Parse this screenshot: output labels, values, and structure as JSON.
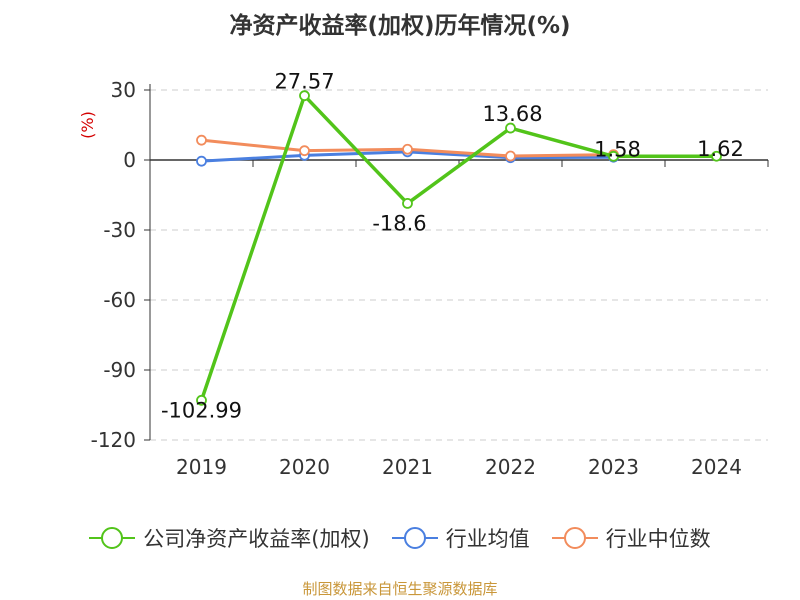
{
  "title": "净资产收益率(加权)历年情况(%)",
  "footer": "制图数据来自恒生聚源数据库",
  "chart_data": {
    "type": "line",
    "ylabel": "(%)",
    "categories": [
      "2019",
      "2020",
      "2021",
      "2022",
      "2023",
      "2024"
    ],
    "ylim": [
      -120,
      30
    ],
    "yticks": [
      30,
      0,
      -30,
      -60,
      -90,
      -120
    ],
    "grid": "horizontal-dashed",
    "legend": "bottom",
    "series": [
      {
        "name": "公司净资产收益率(加权)",
        "color": "#52c41a",
        "values": [
          -102.99,
          27.57,
          -18.6,
          13.68,
          1.58,
          1.62
        ],
        "labels": [
          "-102.99",
          "27.57",
          "-18.6",
          "13.68",
          "1.58",
          "1.62"
        ]
      },
      {
        "name": "行业均值",
        "color": "#4a7fe0",
        "values": [
          -0.5,
          2.0,
          3.5,
          1.0,
          1.2,
          null
        ]
      },
      {
        "name": "行业中位数",
        "color": "#f28c5c",
        "values": [
          8.5,
          4.0,
          4.6,
          1.7,
          2.3,
          null
        ]
      }
    ]
  }
}
